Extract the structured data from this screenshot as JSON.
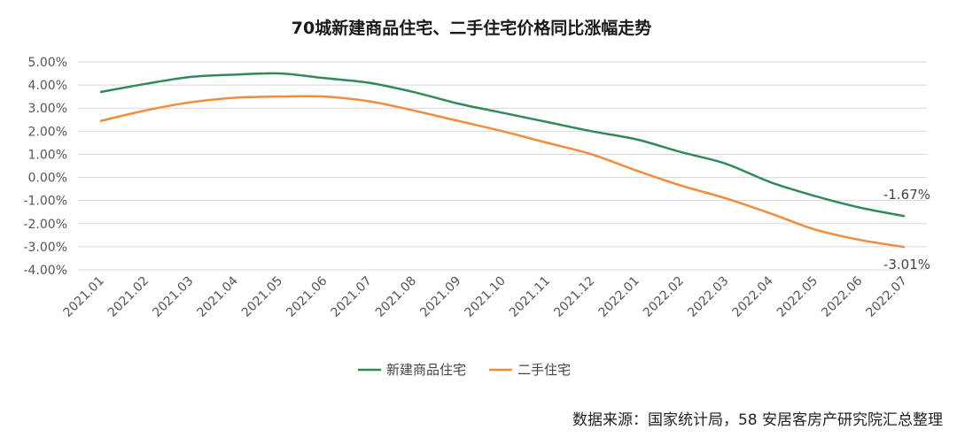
{
  "chart_data": {
    "type": "line",
    "title": "70城新建商品住宅、二手住宅价格同比涨幅走势",
    "categories": [
      "2021.01",
      "2021.02",
      "2021.03",
      "2021.04",
      "2021.05",
      "2021.06",
      "2021.07",
      "2021.08",
      "2021.09",
      "2021.10",
      "2021.11",
      "2021.12",
      "2022.01",
      "2022.02",
      "2022.03",
      "2022.04",
      "2022.05",
      "2022.06",
      "2022.07"
    ],
    "series": [
      {
        "name": "新建商品住宅",
        "color": "#2e8b57",
        "values": [
          3.7,
          4.05,
          4.35,
          4.45,
          4.5,
          4.3,
          4.1,
          3.7,
          3.2,
          2.8,
          2.4,
          2.0,
          1.65,
          1.1,
          0.6,
          -0.2,
          -0.8,
          -1.3,
          -1.67
        ]
      },
      {
        "name": "二手住宅",
        "color": "#f28c38",
        "values": [
          2.45,
          2.9,
          3.25,
          3.45,
          3.5,
          3.5,
          3.3,
          2.9,
          2.45,
          2.0,
          1.5,
          1.0,
          0.3,
          -0.35,
          -0.9,
          -1.55,
          -2.25,
          -2.7,
          -3.01
        ]
      }
    ],
    "yticks": [
      "5.00%",
      "4.00%",
      "3.00%",
      "2.00%",
      "1.00%",
      "0.00%",
      "-1.00%",
      "-2.00%",
      "-3.00%",
      "-4.00%"
    ],
    "ylim": [
      -4,
      5
    ],
    "grid": true,
    "legend_position": "bottom",
    "end_labels": [
      "-1.67%",
      "-3.01%"
    ]
  },
  "source_text": "数据来源：国家统计局，58 安居客房产研究院汇总整理"
}
